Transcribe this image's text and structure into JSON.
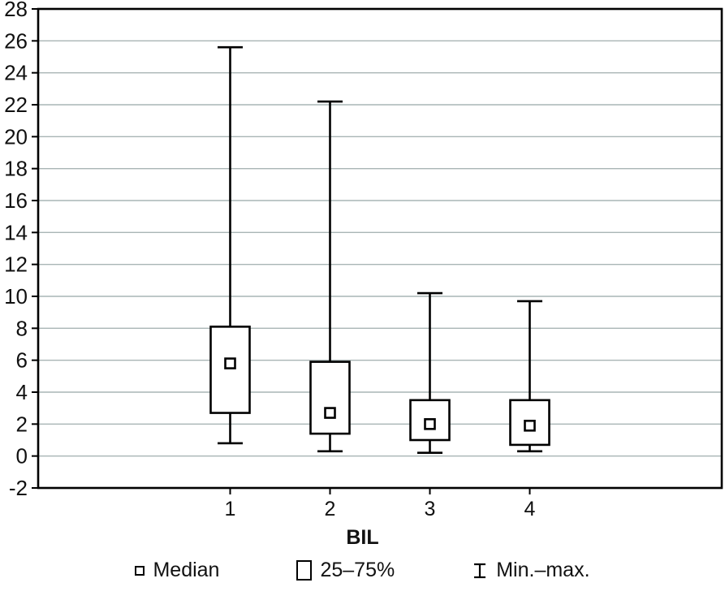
{
  "chart_data": {
    "type": "box",
    "title": "",
    "xlabel": "BIL",
    "ylabel": "",
    "ylim": [
      -2,
      28
    ],
    "ytick_step": 2,
    "grid": "horizontal",
    "legend_position": "bottom",
    "categories": [
      "1",
      "2",
      "3",
      "4"
    ],
    "series": [
      {
        "category": "1",
        "min": 0.8,
        "q1": 2.7,
        "median": 5.8,
        "q3": 8.1,
        "max": 25.6
      },
      {
        "category": "2",
        "min": 0.3,
        "q1": 1.4,
        "median": 2.7,
        "q3": 5.9,
        "max": 22.2
      },
      {
        "category": "3",
        "min": 0.2,
        "q1": 1.0,
        "median": 2.0,
        "q3": 3.5,
        "max": 10.2
      },
      {
        "category": "4",
        "min": 0.3,
        "q1": 0.7,
        "median": 1.9,
        "q3": 3.5,
        "max": 9.7
      }
    ],
    "colors": {
      "grid": "#a9b5b5",
      "frame": "#000000",
      "box_stroke": "#000000",
      "box_fill": "#ffffff",
      "background": "#ffffff"
    },
    "legend": [
      {
        "glyph": "median-square",
        "label": "Median"
      },
      {
        "glyph": "iqr-box",
        "label": "25–75%"
      },
      {
        "glyph": "minmax-whisker",
        "label": "Min.–max."
      }
    ]
  }
}
